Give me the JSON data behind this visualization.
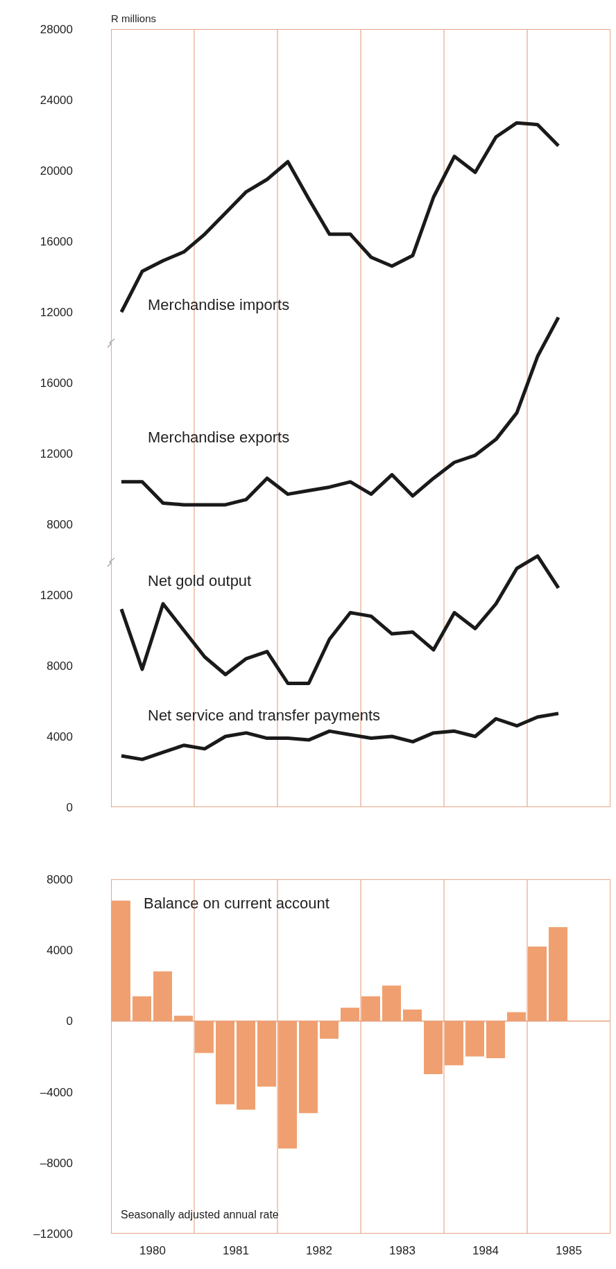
{
  "chart_data": [
    {
      "type": "line",
      "annotations": [
        "R millions"
      ],
      "tick_labels": "y",
      "grid": "x",
      "x": [
        1980.125,
        1980.375,
        1980.625,
        1980.875,
        1981.125,
        1981.375,
        1981.625,
        1981.875,
        1982.125,
        1982.375,
        1982.625,
        1982.875,
        1983.125,
        1983.375,
        1983.625,
        1983.875,
        1984.125,
        1984.375,
        1984.625,
        1984.875,
        1985.125,
        1985.375
      ],
      "xlim": [
        1980,
        1986
      ],
      "xticks": [
        {
          "value": 1981,
          "label": null
        },
        {
          "value": 1982,
          "label": null
        },
        {
          "value": 1983,
          "label": null
        },
        {
          "value": 1984,
          "label": null
        },
        {
          "value": 1985,
          "label": null
        }
      ],
      "ylim": [
        -16000,
        28000
      ],
      "yticks": [
        12000,
        16000,
        20000,
        24000,
        28000
      ],
      "y2lim": [
        -8000,
        36000
      ],
      "y2ticks": [
        8000,
        12000,
        16000
      ],
      "y3lim": [
        0,
        44000
      ],
      "y3ticks": [
        0,
        4000,
        8000,
        12000
      ],
      "series": [
        {
          "name": "Merchandise imports",
          "color": "#1a1a1a",
          "values": [
            12000,
            14300,
            14900,
            15400,
            16400,
            17600,
            18800,
            19500,
            20500,
            18400,
            16400,
            16400,
            15100,
            14600,
            15200,
            18500,
            20800,
            19900,
            21900,
            22700,
            22600,
            21400
          ]
        },
        {
          "name": "Merchandise exports",
          "color": "#1a1a1a",
          "axis": "y2",
          "values": [
            10400,
            10400,
            9200,
            9100,
            9100,
            9100,
            9400,
            10600,
            9700,
            9900,
            10100,
            10400,
            9700,
            10800,
            9600,
            10600,
            11500,
            11900,
            12800,
            14300,
            17500,
            19700
          ]
        },
        {
          "name": "Net gold output",
          "color": "#1a1a1a",
          "axis": "y3",
          "values": [
            11200,
            7800,
            11500,
            10000,
            8500,
            7500,
            8400,
            8800,
            7000,
            7000,
            9500,
            11000,
            10800,
            9800,
            9900,
            8900,
            11000,
            10100,
            11500,
            13500,
            14200,
            12400
          ]
        },
        {
          "name": "Net service and transfer payments",
          "color": "#1a1a1a",
          "axis": "y3",
          "values": [
            2900,
            2700,
            3100,
            3500,
            3300,
            4000,
            4200,
            3900,
            3900,
            3800,
            4300,
            4100,
            3900,
            4000,
            3700,
            4200,
            4300,
            4000,
            5000,
            4600,
            5100,
            5300
          ]
        }
      ]
    },
    {
      "type": "bar",
      "grid": "x",
      "annotations": [
        "Seasonally adjusted annual rate"
      ],
      "x": [
        1980.125,
        1980.375,
        1980.625,
        1980.875,
        1981.125,
        1981.375,
        1981.625,
        1981.875,
        1982.125,
        1982.375,
        1982.625,
        1982.875,
        1983.125,
        1983.375,
        1983.625,
        1983.875,
        1984.125,
        1984.375,
        1984.625,
        1984.875,
        1985.125,
        1985.375
      ],
      "xlim": [
        1980,
        1986
      ],
      "xticks": [
        {
          "value": 1980.5,
          "label": "1980"
        },
        {
          "value": 1981,
          "label": null
        },
        {
          "value": 1981.5,
          "label": "1981"
        },
        {
          "value": 1982,
          "label": null
        },
        {
          "value": 1982.5,
          "label": "1982"
        },
        {
          "value": 1983,
          "label": null
        },
        {
          "value": 1983.5,
          "label": "1983"
        },
        {
          "value": 1984,
          "label": null
        },
        {
          "value": 1984.5,
          "label": "1984"
        },
        {
          "value": 1985,
          "label": null
        },
        {
          "value": 1985.5,
          "label": "1985"
        }
      ],
      "ylim": [
        -12000,
        8000
      ],
      "yticks": [
        {
          "value": -12000,
          "label": "–12000"
        },
        {
          "value": -8000,
          "label": "–8000"
        },
        {
          "value": -4000,
          "label": "–4000"
        },
        0,
        4000,
        8000
      ],
      "ref_lines": [
        {
          "axis": "y",
          "value": 0,
          "color": "#e8a07a"
        }
      ],
      "series": [
        {
          "name": "Balance on current account",
          "color": "#f0a070",
          "values": [
            6800,
            1400,
            2800,
            300,
            -1800,
            -4700,
            -5000,
            -3700,
            -7200,
            -5200,
            -1000,
            750,
            1400,
            2000,
            650,
            -3000,
            -2500,
            -2000,
            -2100,
            500,
            4200,
            5300
          ]
        }
      ]
    }
  ]
}
